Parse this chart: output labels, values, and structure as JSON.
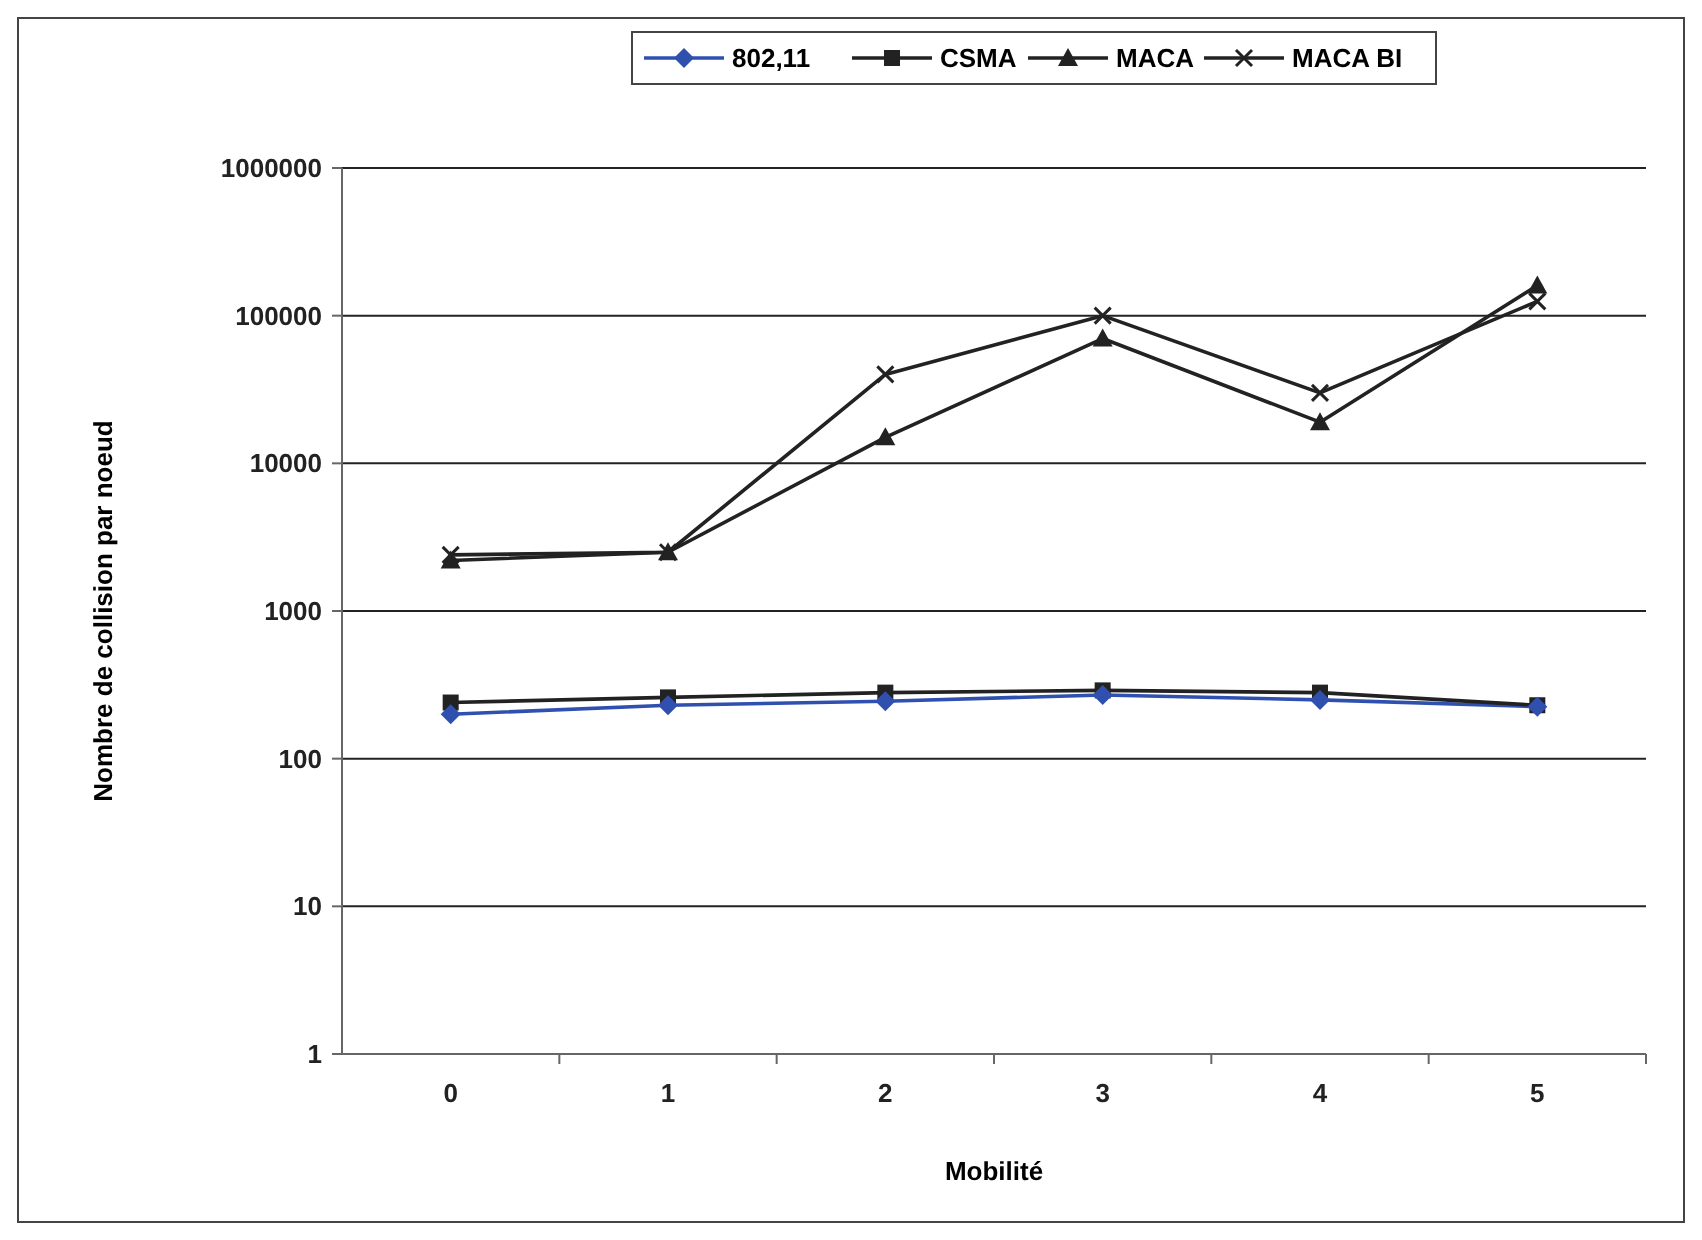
{
  "chart_data": {
    "type": "line",
    "xlabel": "Mobilité",
    "ylabel": "Nombre de collision par noeud",
    "categories": [
      "0",
      "1",
      "2",
      "3",
      "4",
      "5"
    ],
    "series": [
      {
        "name": "802,11",
        "color": "#3050b0",
        "marker": "diamond",
        "values": [
          200,
          230,
          245,
          270,
          250,
          225
        ]
      },
      {
        "name": "CSMA",
        "color": "#222222",
        "marker": "square",
        "values": [
          240,
          260,
          280,
          290,
          280,
          230
        ]
      },
      {
        "name": "MACA",
        "color": "#222222",
        "marker": "triangle",
        "values": [
          2200,
          2500,
          15000,
          70000,
          19000,
          160000
        ]
      },
      {
        "name": "MACA BI",
        "color": "#222222",
        "marker": "cross",
        "values": [
          2400,
          2500,
          40000,
          100000,
          30000,
          125000
        ]
      }
    ],
    "log": "y",
    "ylim": [
      1,
      1000000
    ],
    "yticks": [
      1,
      10,
      100,
      1000,
      10000,
      100000,
      1000000
    ],
    "grid": "y",
    "legend": "top",
    "line_style": "solid"
  }
}
